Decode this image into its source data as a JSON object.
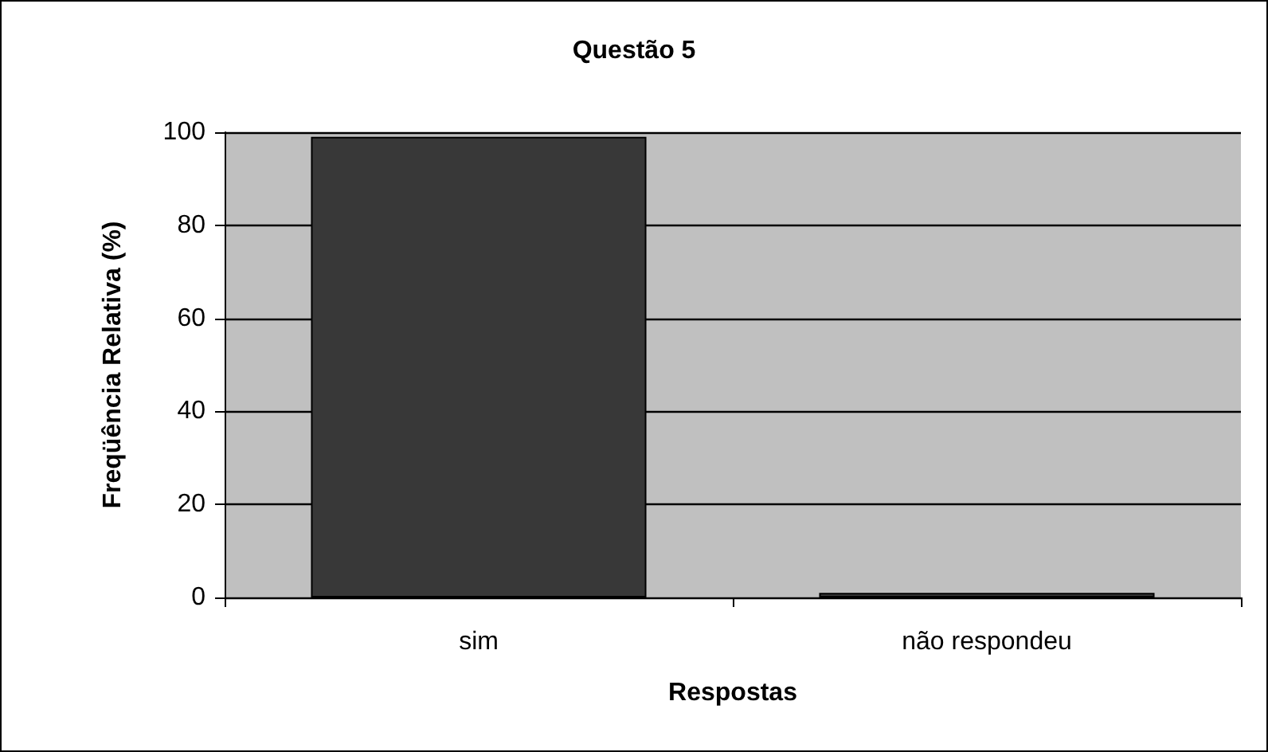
{
  "chart_data": {
    "type": "bar",
    "title": "Questão 5",
    "xlabel": "Respostas",
    "ylabel": "Freqüência Relativa (%)",
    "categories": [
      "sim",
      "não respondeu"
    ],
    "values": [
      99,
      1
    ],
    "color": "#383838",
    "ylim": [
      0,
      100
    ],
    "yticks": [
      0,
      20,
      40,
      60,
      80,
      100
    ],
    "grid": "y"
  }
}
